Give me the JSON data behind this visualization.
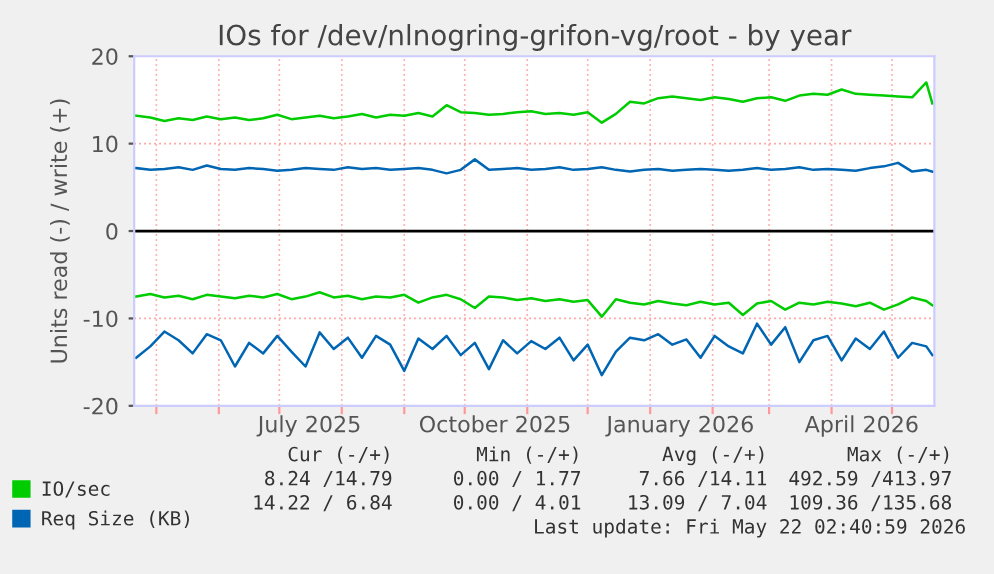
{
  "chart_data": {
    "type": "line",
    "title": "IOs for /dev/nlnogring-grifon-vg/root - by year",
    "ylabel": "Units read (-) / write (+)",
    "x": [
      "2025-04-21",
      "2025-04-28",
      "2025-05-05",
      "2025-05-12",
      "2025-05-19",
      "2025-05-26",
      "2025-06-02",
      "2025-06-09",
      "2025-06-16",
      "2025-06-23",
      "2025-06-30",
      "2025-07-07",
      "2025-07-14",
      "2025-07-21",
      "2025-07-28",
      "2025-08-04",
      "2025-08-11",
      "2025-08-18",
      "2025-08-25",
      "2025-09-01",
      "2025-09-08",
      "2025-09-15",
      "2025-09-22",
      "2025-09-29",
      "2025-10-06",
      "2025-10-13",
      "2025-10-20",
      "2025-10-27",
      "2025-11-03",
      "2025-11-10",
      "2025-11-17",
      "2025-11-24",
      "2025-12-01",
      "2025-12-08",
      "2025-12-15",
      "2025-12-22",
      "2025-12-29",
      "2026-01-05",
      "2026-01-12",
      "2026-01-19",
      "2026-01-26",
      "2026-02-02",
      "2026-02-09",
      "2026-02-16",
      "2026-02-23",
      "2026-03-02",
      "2026-03-09",
      "2026-03-16",
      "2026-03-23",
      "2026-03-30",
      "2026-04-06",
      "2026-04-13",
      "2026-04-20",
      "2026-04-27",
      "2026-05-04",
      "2026-05-11",
      "2026-05-18",
      "2026-05-21"
    ],
    "series": [
      {
        "name": "IO/sec",
        "color": "#00cc00",
        "values": [
          13.2,
          13.0,
          12.6,
          12.9,
          12.7,
          13.1,
          12.8,
          13.0,
          12.7,
          12.9,
          13.3,
          12.8,
          13.0,
          13.2,
          12.9,
          13.1,
          13.4,
          13.0,
          13.3,
          13.2,
          13.5,
          13.1,
          14.4,
          13.6,
          13.5,
          13.3,
          13.4,
          13.6,
          13.7,
          13.4,
          13.5,
          13.3,
          13.6,
          12.4,
          13.4,
          14.8,
          14.6,
          15.2,
          15.4,
          15.2,
          15.0,
          15.3,
          15.1,
          14.8,
          15.2,
          15.3,
          14.9,
          15.5,
          15.7,
          15.6,
          16.2,
          15.7,
          15.6,
          15.5,
          15.4,
          15.3,
          17.0,
          14.6
        ]
      },
      {
        "name": "Req Size (KB)",
        "color": "#0066b3",
        "values": [
          7.2,
          7.0,
          7.1,
          7.3,
          7.0,
          7.5,
          7.1,
          7.0,
          7.2,
          7.1,
          6.9,
          7.0,
          7.2,
          7.1,
          7.0,
          7.3,
          7.1,
          7.2,
          7.0,
          7.1,
          7.2,
          7.0,
          6.6,
          7.0,
          8.2,
          7.0,
          7.1,
          7.2,
          7.0,
          7.1,
          7.3,
          7.0,
          7.1,
          7.3,
          7.0,
          6.8,
          7.0,
          7.1,
          6.9,
          7.0,
          7.1,
          7.0,
          6.9,
          7.0,
          7.2,
          7.0,
          7.1,
          7.3,
          7.0,
          7.1,
          7.0,
          6.9,
          7.2,
          7.4,
          7.8,
          6.8,
          7.0,
          6.8
        ]
      },
      {
        "color": "#00cc00",
        "values": [
          -7.5,
          -7.2,
          -7.6,
          -7.4,
          -7.8,
          -7.3,
          -7.5,
          -7.7,
          -7.4,
          -7.6,
          -7.2,
          -7.8,
          -7.5,
          -7.0,
          -7.6,
          -7.4,
          -7.8,
          -7.5,
          -7.6,
          -7.3,
          -8.2,
          -7.6,
          -7.3,
          -7.8,
          -8.8,
          -7.5,
          -7.6,
          -7.9,
          -7.7,
          -8.0,
          -7.8,
          -8.1,
          -7.9,
          -9.8,
          -7.8,
          -8.2,
          -8.4,
          -8.0,
          -8.3,
          -8.5,
          -8.1,
          -8.4,
          -8.2,
          -9.6,
          -8.3,
          -8.0,
          -9.0,
          -8.2,
          -8.4,
          -8.1,
          -8.3,
          -8.6,
          -8.2,
          -9.0,
          -8.4,
          -7.6,
          -8.0,
          -8.5
        ]
      },
      {
        "color": "#0066b3",
        "values": [
          -14.5,
          -13.2,
          -11.5,
          -12.5,
          -14.0,
          -11.8,
          -12.5,
          -15.5,
          -12.8,
          -14.0,
          -12.0,
          -13.8,
          -15.5,
          -11.6,
          -13.5,
          -12.2,
          -14.5,
          -12.0,
          -13.0,
          -16.0,
          -12.3,
          -13.5,
          -12.0,
          -14.2,
          -12.8,
          -15.8,
          -12.5,
          -14.0,
          -12.6,
          -13.5,
          -12.2,
          -14.8,
          -13.0,
          -16.5,
          -13.8,
          -12.2,
          -12.5,
          -11.8,
          -13.0,
          -12.4,
          -14.5,
          -12.0,
          -13.2,
          -14.0,
          -10.6,
          -13.0,
          -11.0,
          -15.0,
          -12.5,
          -12.0,
          -14.8,
          -12.3,
          -13.5,
          -11.5,
          -14.5,
          -12.8,
          -13.2,
          -14.2
        ]
      }
    ],
    "xlim": [
      "2025-04-20",
      "2026-05-22"
    ],
    "xticks": [
      {
        "value": "2025-05-01",
        "label": null
      },
      {
        "value": "2025-06-01",
        "label": null
      },
      {
        "value": "2025-07-01",
        "label": null
      },
      {
        "value": "2025-07-16",
        "label": "July 2025"
      },
      {
        "value": "2025-08-01",
        "label": null
      },
      {
        "value": "2025-09-01",
        "label": null
      },
      {
        "value": "2025-10-01",
        "label": null
      },
      {
        "value": "2025-10-16",
        "label": "October 2025"
      },
      {
        "value": "2025-11-01",
        "label": null
      },
      {
        "value": "2025-12-01",
        "label": null
      },
      {
        "value": "2026-01-01",
        "label": null
      },
      {
        "value": "2026-01-16",
        "label": "January 2026"
      },
      {
        "value": "2026-02-01",
        "label": null
      },
      {
        "value": "2026-03-01",
        "label": null
      },
      {
        "value": "2026-04-01",
        "label": null
      },
      {
        "value": "2026-04-16",
        "label": "April 2026"
      },
      {
        "value": "2026-05-01",
        "label": null
      }
    ],
    "ylim": [
      -20,
      20
    ],
    "yticks": [
      -20,
      -10,
      0,
      10,
      20
    ],
    "grid": true,
    "legend": "bottom left",
    "ref_lines": [
      {
        "axis": "y",
        "value": 0,
        "color": "#000000"
      }
    ],
    "annotations": [
      "Cur (-/+)",
      "Min (-/+)",
      "Avg (-/+)",
      "Max (-/+)",
      "8.24 /14.79",
      "0.00 / 1.77",
      "7.66 /14.11",
      "492.59 /413.97",
      "14.22 / 6.84",
      "0.00 / 4.01",
      "13.09 / 7.04",
      "109.36 /135.68",
      "Last update: Fri May 22 02:40:59 2026"
    ]
  }
}
